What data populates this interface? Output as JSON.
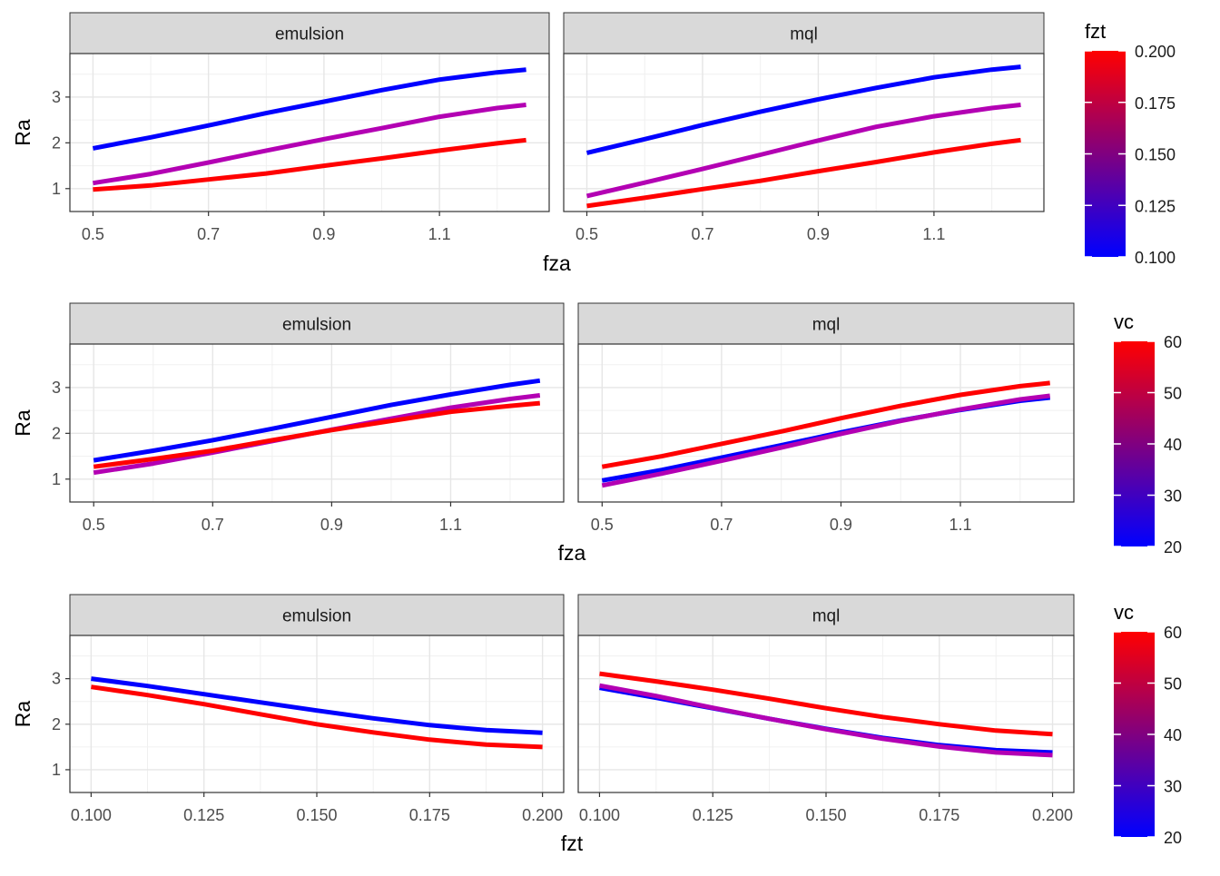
{
  "chart_data": [
    {
      "type": "line",
      "xlabel": "fza",
      "ylabel": "Ra",
      "color_legend": {
        "title": "fzt",
        "min": 0.1,
        "max": 0.2,
        "low_color": "#0000FF",
        "high_color": "#FF0000",
        "ticks": [
          "0.100",
          "0.125",
          "0.150",
          "0.175",
          "0.200"
        ]
      },
      "xlim": [
        0.46,
        1.29
      ],
      "ylim": [
        0.5,
        3.95
      ],
      "x_ticks": [
        "0.5",
        "0.7",
        "0.9",
        "1.1"
      ],
      "y_ticks": [
        "1",
        "2",
        "3"
      ],
      "x": [
        0.5,
        0.6,
        0.7,
        0.8,
        0.9,
        1.0,
        1.1,
        1.2,
        1.25
      ],
      "facets": [
        {
          "label": "emulsion",
          "series": [
            {
              "level": 0.1,
              "color": "#0000FF",
              "values": [
                1.88,
                2.12,
                2.38,
                2.65,
                2.9,
                3.15,
                3.38,
                3.54,
                3.6
              ]
            },
            {
              "level": 0.15,
              "color": "#B300B3",
              "values": [
                1.12,
                1.32,
                1.57,
                1.83,
                2.08,
                2.32,
                2.57,
                2.76,
                2.83
              ]
            },
            {
              "level": 0.2,
              "color": "#FF0000",
              "values": [
                0.98,
                1.07,
                1.2,
                1.33,
                1.5,
                1.66,
                1.83,
                1.99,
                2.06
              ]
            }
          ]
        },
        {
          "label": "mql",
          "series": [
            {
              "level": 0.1,
              "color": "#0000FF",
              "values": [
                1.78,
                2.08,
                2.39,
                2.68,
                2.95,
                3.2,
                3.43,
                3.6,
                3.66
              ]
            },
            {
              "level": 0.15,
              "color": "#B300B3",
              "values": [
                0.84,
                1.13,
                1.43,
                1.74,
                2.05,
                2.35,
                2.58,
                2.76,
                2.83
              ]
            },
            {
              "level": 0.2,
              "color": "#FF0000",
              "values": [
                0.62,
                0.8,
                0.99,
                1.17,
                1.38,
                1.58,
                1.79,
                1.98,
                2.06
              ]
            }
          ]
        }
      ]
    },
    {
      "type": "line",
      "xlabel": "fza",
      "ylabel": "Ra",
      "color_legend": {
        "title": "vc",
        "min": 20,
        "max": 60,
        "low_color": "#0000FF",
        "high_color": "#FF0000",
        "ticks": [
          "20",
          "30",
          "40",
          "50",
          "60"
        ]
      },
      "xlim": [
        0.46,
        1.29
      ],
      "ylim": [
        0.5,
        3.95
      ],
      "x_ticks": [
        "0.5",
        "0.7",
        "0.9",
        "1.1"
      ],
      "y_ticks": [
        "1",
        "2",
        "3"
      ],
      "x": [
        0.5,
        0.6,
        0.7,
        0.8,
        0.9,
        1.0,
        1.1,
        1.2,
        1.25
      ],
      "facets": [
        {
          "label": "emulsion",
          "series": [
            {
              "level": 20,
              "color": "#0000FF",
              "values": [
                1.41,
                1.62,
                1.85,
                2.1,
                2.36,
                2.62,
                2.85,
                3.06,
                3.15
              ]
            },
            {
              "level": 40,
              "color": "#B300B3",
              "values": [
                1.14,
                1.34,
                1.58,
                1.83,
                2.08,
                2.32,
                2.56,
                2.75,
                2.83
              ]
            },
            {
              "level": 60,
              "color": "#FF0000",
              "values": [
                1.27,
                1.44,
                1.62,
                1.85,
                2.07,
                2.27,
                2.47,
                2.6,
                2.66
              ]
            }
          ]
        },
        {
          "label": "mql",
          "series": [
            {
              "level": 20,
              "color": "#0000FF",
              "values": [
                0.97,
                1.2,
                1.47,
                1.74,
                2.02,
                2.28,
                2.51,
                2.71,
                2.78
              ]
            },
            {
              "level": 40,
              "color": "#B300B3",
              "values": [
                0.86,
                1.12,
                1.4,
                1.69,
                1.99,
                2.27,
                2.52,
                2.74,
                2.82
              ]
            },
            {
              "level": 60,
              "color": "#FF0000",
              "values": [
                1.27,
                1.5,
                1.77,
                2.04,
                2.33,
                2.6,
                2.84,
                3.03,
                3.1
              ]
            }
          ]
        }
      ]
    },
    {
      "type": "line",
      "xlabel": "fzt",
      "ylabel": "Ra",
      "color_legend": {
        "title": "vc",
        "min": 20,
        "max": 60,
        "low_color": "#0000FF",
        "high_color": "#FF0000",
        "ticks": [
          "20",
          "30",
          "40",
          "50",
          "60"
        ]
      },
      "xlim": [
        0.0953,
        0.2047
      ],
      "ylim": [
        0.5,
        3.95
      ],
      "x_ticks": [
        "0.100",
        "0.125",
        "0.150",
        "0.175",
        "0.200"
      ],
      "y_ticks": [
        "1",
        "2",
        "3"
      ],
      "x": [
        0.1,
        0.1125,
        0.125,
        0.1375,
        0.15,
        0.1625,
        0.175,
        0.1875,
        0.2
      ],
      "facets": [
        {
          "label": "emulsion",
          "series": [
            {
              "level": 20,
              "color": "#0000FF",
              "values": [
                3.0,
                2.84,
                2.66,
                2.48,
                2.3,
                2.13,
                1.98,
                1.87,
                1.81
              ]
            },
            {
              "level": 60,
              "color": "#FF0000",
              "values": [
                2.82,
                2.64,
                2.44,
                2.22,
                2.0,
                1.82,
                1.66,
                1.55,
                1.5
              ]
            }
          ]
        },
        {
          "label": "mql",
          "series": [
            {
              "level": 20,
              "color": "#0000FF",
              "values": [
                2.8,
                2.58,
                2.35,
                2.12,
                1.9,
                1.7,
                1.54,
                1.43,
                1.38
              ]
            },
            {
              "level": 40,
              "color": "#B300B3",
              "values": [
                2.85,
                2.62,
                2.36,
                2.12,
                1.89,
                1.68,
                1.51,
                1.38,
                1.32
              ]
            },
            {
              "level": 60,
              "color": "#FF0000",
              "values": [
                3.11,
                2.94,
                2.76,
                2.56,
                2.35,
                2.16,
                2.0,
                1.86,
                1.78
              ]
            }
          ]
        }
      ]
    }
  ]
}
